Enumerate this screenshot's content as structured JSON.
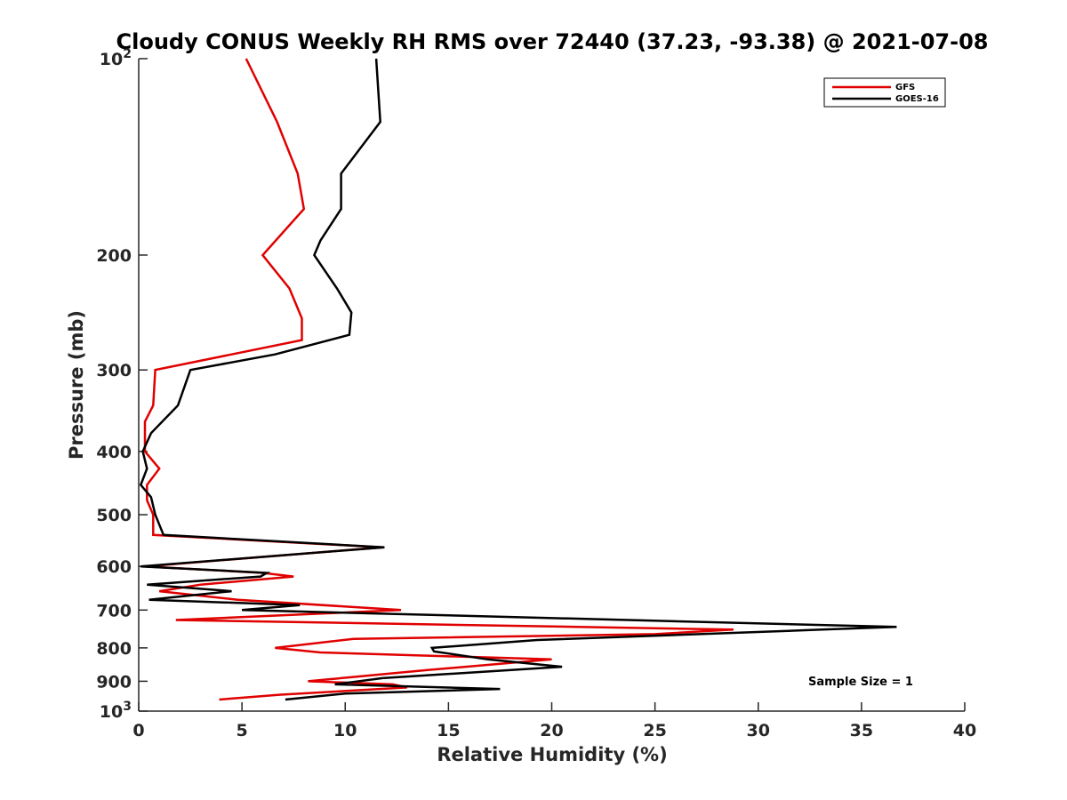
{
  "chart_data": {
    "type": "line",
    "title": "Cloudy CONUS Weekly RH RMS over 72440 (37.23, -93.38) @ 2021-07-08",
    "xlabel": "Relative Humidity (%)",
    "ylabel": "Pressure (mb)",
    "xlim": [
      0,
      40
    ],
    "ylim": [
      100,
      1000
    ],
    "y_scale": "log",
    "y_reversed": true,
    "grid": false,
    "legend_position": "top-right",
    "x_ticks": [
      "0",
      "5",
      "10",
      "15",
      "20",
      "25",
      "30",
      "35",
      "40"
    ],
    "y_ticks": [
      {
        "value": 100,
        "base": "10",
        "exp": "2"
      },
      {
        "value": 200,
        "base": "200",
        "exp": ""
      },
      {
        "value": 300,
        "base": "300",
        "exp": ""
      },
      {
        "value": 400,
        "base": "400",
        "exp": ""
      },
      {
        "value": 500,
        "base": "500",
        "exp": ""
      },
      {
        "value": 600,
        "base": "600",
        "exp": ""
      },
      {
        "value": 700,
        "base": "700",
        "exp": ""
      },
      {
        "value": 800,
        "base": "800",
        "exp": ""
      },
      {
        "value": 900,
        "base": "900",
        "exp": ""
      },
      {
        "value": 1000,
        "base": "10",
        "exp": "3"
      }
    ],
    "annotation": "Sample Size = 1",
    "series": [
      {
        "name": "GFS",
        "color": "#e00000",
        "points": [
          [
            5.2,
            100
          ],
          [
            6.7,
            125
          ],
          [
            7.7,
            150
          ],
          [
            8.0,
            170
          ],
          [
            6.0,
            200
          ],
          [
            7.3,
            225
          ],
          [
            7.9,
            250
          ],
          [
            7.9,
            270
          ],
          [
            4.5,
            284
          ],
          [
            0.8,
            300
          ],
          [
            0.7,
            340
          ],
          [
            0.3,
            360
          ],
          [
            0.3,
            375
          ],
          [
            0.3,
            400
          ],
          [
            1.0,
            425
          ],
          [
            0.4,
            450
          ],
          [
            0.4,
            475
          ],
          [
            0.7,
            500
          ],
          [
            0.7,
            520
          ],
          [
            0.7,
            537
          ],
          [
            11.8,
            561
          ],
          [
            0.3,
            600
          ],
          [
            6.0,
            614
          ],
          [
            7.5,
            622
          ],
          [
            3.0,
            640
          ],
          [
            1.0,
            655
          ],
          [
            4.8,
            675
          ],
          [
            12.7,
            700
          ],
          [
            1.8,
            725
          ],
          [
            28.8,
            750
          ],
          [
            25.0,
            762
          ],
          [
            10.4,
            775
          ],
          [
            6.6,
            800
          ],
          [
            8.8,
            813
          ],
          [
            20.0,
            833
          ],
          [
            14.0,
            865
          ],
          [
            8.2,
            900
          ],
          [
            12.3,
            910
          ],
          [
            13.0,
            920
          ],
          [
            6.8,
            944
          ],
          [
            3.9,
            960
          ]
        ]
      },
      {
        "name": "GOES-16",
        "color": "#000000",
        "points": [
          [
            11.5,
            100
          ],
          [
            11.7,
            125
          ],
          [
            9.8,
            150
          ],
          [
            9.8,
            170
          ],
          [
            8.8,
            190
          ],
          [
            8.5,
            200
          ],
          [
            9.6,
            225
          ],
          [
            10.3,
            245
          ],
          [
            10.2,
            265
          ],
          [
            6.6,
            284
          ],
          [
            2.5,
            300
          ],
          [
            1.9,
            340
          ],
          [
            0.6,
            375
          ],
          [
            0.2,
            400
          ],
          [
            0.4,
            425
          ],
          [
            0.1,
            450
          ],
          [
            0.6,
            470
          ],
          [
            0.8,
            500
          ],
          [
            1.2,
            537
          ],
          [
            11.9,
            561
          ],
          [
            0.1,
            600
          ],
          [
            6.2,
            614
          ],
          [
            5.9,
            622
          ],
          [
            0.4,
            640
          ],
          [
            4.5,
            655
          ],
          [
            0.5,
            675
          ],
          [
            7.8,
            688
          ],
          [
            5.0,
            700
          ],
          [
            36.7,
            743
          ],
          [
            33.1,
            750
          ],
          [
            19.3,
            778
          ],
          [
            14.2,
            800
          ],
          [
            14.3,
            810
          ],
          [
            16.9,
            833
          ],
          [
            20.5,
            855
          ],
          [
            11.8,
            890
          ],
          [
            9.5,
            910
          ],
          [
            17.5,
            925
          ],
          [
            10.0,
            940
          ],
          [
            7.1,
            960
          ]
        ]
      }
    ]
  }
}
